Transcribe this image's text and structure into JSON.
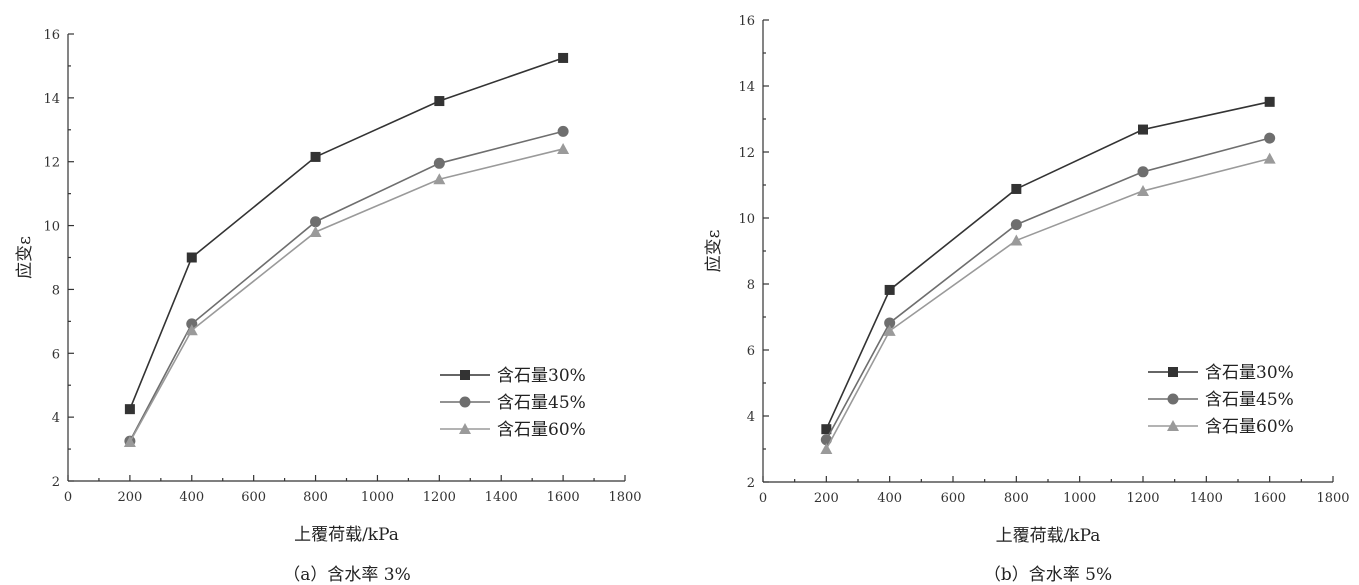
{
  "chart_data": [
    {
      "type": "line",
      "caption": "（a）含水率 3%",
      "xlabel": "上覆荷载/kPa",
      "ylabel": "应变ε",
      "xlim": [
        0,
        1800
      ],
      "ylim": [
        2,
        16
      ],
      "xticks": [
        0,
        200,
        400,
        600,
        800,
        1000,
        1200,
        1400,
        1600,
        1800
      ],
      "yticks": [
        2,
        4,
        6,
        8,
        10,
        12,
        14,
        16
      ],
      "legend_position": "bottom-right",
      "x": [
        200,
        400,
        800,
        1200,
        1600
      ],
      "series": [
        {
          "name": "含石量30%",
          "marker": "square",
          "color": "#333333",
          "values": [
            4.25,
            9.0,
            12.15,
            13.9,
            15.25
          ]
        },
        {
          "name": "含石量45%",
          "marker": "circle",
          "color": "#6e6e6e",
          "values": [
            3.25,
            6.92,
            10.12,
            11.95,
            12.95
          ]
        },
        {
          "name": "含石量60%",
          "marker": "triangle",
          "color": "#9a9a9a",
          "values": [
            3.22,
            6.72,
            9.8,
            11.45,
            12.4
          ]
        }
      ]
    },
    {
      "type": "line",
      "caption": "（b）含水率 5%",
      "xlabel": "上覆荷载/kPa",
      "ylabel": "应变ε",
      "xlim": [
        0,
        1800
      ],
      "ylim": [
        2,
        16
      ],
      "xticks": [
        0,
        200,
        400,
        600,
        800,
        1000,
        1200,
        1400,
        1600,
        1800
      ],
      "yticks": [
        2,
        4,
        6,
        8,
        10,
        12,
        14,
        16
      ],
      "legend_position": "bottom-right",
      "x": [
        200,
        400,
        800,
        1200,
        1600
      ],
      "series": [
        {
          "name": "含石量30%",
          "marker": "square",
          "color": "#333333",
          "values": [
            3.6,
            7.82,
            10.88,
            12.68,
            13.52
          ]
        },
        {
          "name": "含石量45%",
          "marker": "circle",
          "color": "#6e6e6e",
          "values": [
            3.28,
            6.82,
            9.8,
            11.4,
            12.42
          ]
        },
        {
          "name": "含石量60%",
          "marker": "triangle",
          "color": "#9a9a9a",
          "values": [
            3.0,
            6.58,
            9.32,
            10.82,
            11.8
          ]
        }
      ]
    }
  ]
}
